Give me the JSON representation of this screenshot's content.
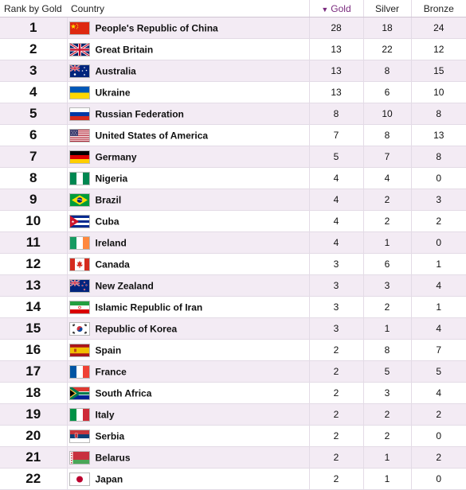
{
  "headers": {
    "rank": "Rank by Gold",
    "country": "Country",
    "gold": "Gold",
    "silver": "Silver",
    "bronze": "Bronze",
    "sort_indicator": "▼"
  },
  "colors": {
    "accent": "#7a2a7e",
    "row_alt": "#f3ebf4"
  },
  "rows": [
    {
      "rank": "1",
      "country": "People's Republic of China",
      "flag_icon": "china-flag-icon",
      "gold": "28",
      "silver": "18",
      "bronze": "24"
    },
    {
      "rank": "2",
      "country": "Great Britain",
      "flag_icon": "great-britain-flag-icon",
      "gold": "13",
      "silver": "22",
      "bronze": "12"
    },
    {
      "rank": "3",
      "country": "Australia",
      "flag_icon": "australia-flag-icon",
      "gold": "13",
      "silver": "8",
      "bronze": "15"
    },
    {
      "rank": "4",
      "country": "Ukraine",
      "flag_icon": "ukraine-flag-icon",
      "gold": "13",
      "silver": "6",
      "bronze": "10"
    },
    {
      "rank": "5",
      "country": "Russian Federation",
      "flag_icon": "russia-flag-icon",
      "gold": "8",
      "silver": "10",
      "bronze": "8"
    },
    {
      "rank": "6",
      "country": "United States of America",
      "flag_icon": "usa-flag-icon",
      "gold": "7",
      "silver": "8",
      "bronze": "13"
    },
    {
      "rank": "7",
      "country": "Germany",
      "flag_icon": "germany-flag-icon",
      "gold": "5",
      "silver": "7",
      "bronze": "8"
    },
    {
      "rank": "8",
      "country": "Nigeria",
      "flag_icon": "nigeria-flag-icon",
      "gold": "4",
      "silver": "4",
      "bronze": "0"
    },
    {
      "rank": "9",
      "country": "Brazil",
      "flag_icon": "brazil-flag-icon",
      "gold": "4",
      "silver": "2",
      "bronze": "3"
    },
    {
      "rank": "10",
      "country": "Cuba",
      "flag_icon": "cuba-flag-icon",
      "gold": "4",
      "silver": "2",
      "bronze": "2"
    },
    {
      "rank": "11",
      "country": "Ireland",
      "flag_icon": "ireland-flag-icon",
      "gold": "4",
      "silver": "1",
      "bronze": "0"
    },
    {
      "rank": "12",
      "country": "Canada",
      "flag_icon": "canada-flag-icon",
      "gold": "3",
      "silver": "6",
      "bronze": "1"
    },
    {
      "rank": "13",
      "country": "New Zealand",
      "flag_icon": "new-zealand-flag-icon",
      "gold": "3",
      "silver": "3",
      "bronze": "4"
    },
    {
      "rank": "14",
      "country": "Islamic Republic of Iran",
      "flag_icon": "iran-flag-icon",
      "gold": "3",
      "silver": "2",
      "bronze": "1"
    },
    {
      "rank": "15",
      "country": "Republic of Korea",
      "flag_icon": "korea-flag-icon",
      "gold": "3",
      "silver": "1",
      "bronze": "4"
    },
    {
      "rank": "16",
      "country": "Spain",
      "flag_icon": "spain-flag-icon",
      "gold": "2",
      "silver": "8",
      "bronze": "7"
    },
    {
      "rank": "17",
      "country": "France",
      "flag_icon": "france-flag-icon",
      "gold": "2",
      "silver": "5",
      "bronze": "5"
    },
    {
      "rank": "18",
      "country": "South Africa",
      "flag_icon": "south-africa-flag-icon",
      "gold": "2",
      "silver": "3",
      "bronze": "4"
    },
    {
      "rank": "19",
      "country": "Italy",
      "flag_icon": "italy-flag-icon",
      "gold": "2",
      "silver": "2",
      "bronze": "2"
    },
    {
      "rank": "20",
      "country": "Serbia",
      "flag_icon": "serbia-flag-icon",
      "gold": "2",
      "silver": "2",
      "bronze": "0"
    },
    {
      "rank": "21",
      "country": "Belarus",
      "flag_icon": "belarus-flag-icon",
      "gold": "2",
      "silver": "1",
      "bronze": "2"
    },
    {
      "rank": "22",
      "country": "Japan",
      "flag_icon": "japan-flag-icon",
      "gold": "2",
      "silver": "1",
      "bronze": "0"
    }
  ]
}
